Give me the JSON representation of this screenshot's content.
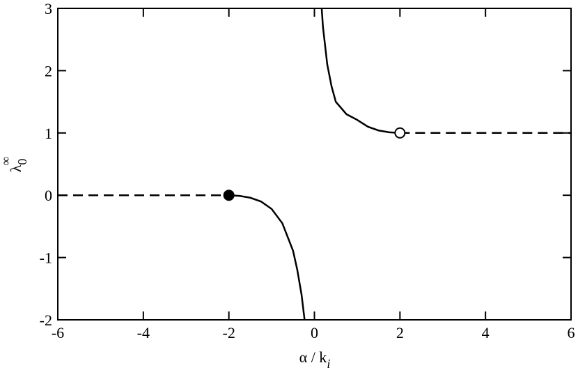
{
  "chart_data": {
    "type": "line",
    "xlabel": "α / k",
    "xlabel_sub": "i",
    "ylabel": "λ",
    "ylabel_sub": "0",
    "ylabel_sup": "∞",
    "xlim": [
      -6,
      6
    ],
    "xticks": [
      -6,
      -4,
      -2,
      0,
      2,
      4,
      6
    ],
    "ylim": [
      -2,
      3
    ],
    "yticks": [
      -2,
      -1,
      0,
      1,
      2,
      3
    ],
    "series": [
      {
        "color": "#000000",
        "style": "dashed",
        "x": [
          -6,
          -2
        ],
        "values": [
          0,
          0
        ]
      },
      {
        "color": "#000000",
        "style": "solid",
        "x": [
          -2,
          -1.75,
          -1.5,
          -1.25,
          -1,
          -0.75,
          -0.5,
          -0.4,
          -0.3,
          -0.23
        ],
        "values": [
          0,
          -0.01,
          -0.04,
          -0.1,
          -0.22,
          -0.45,
          -0.89,
          -1.2,
          -1.6,
          -2
        ]
      },
      {
        "color": "#000000",
        "style": "solid",
        "x": [
          0.17,
          0.2,
          0.3,
          0.4,
          0.5,
          0.75,
          1,
          1.25,
          1.5,
          1.75,
          2
        ],
        "values": [
          3,
          2.7,
          2.1,
          1.75,
          1.5,
          1.3,
          1.21,
          1.1,
          1.04,
          1.01,
          1
        ]
      },
      {
        "color": "#000000",
        "style": "dashed",
        "x": [
          2,
          6
        ],
        "values": [
          1,
          1
        ]
      }
    ],
    "markers": [
      {
        "x": -2,
        "y": 0,
        "fill": "#000000"
      },
      {
        "x": 2,
        "y": 1,
        "fill": "#ffffff"
      }
    ]
  }
}
